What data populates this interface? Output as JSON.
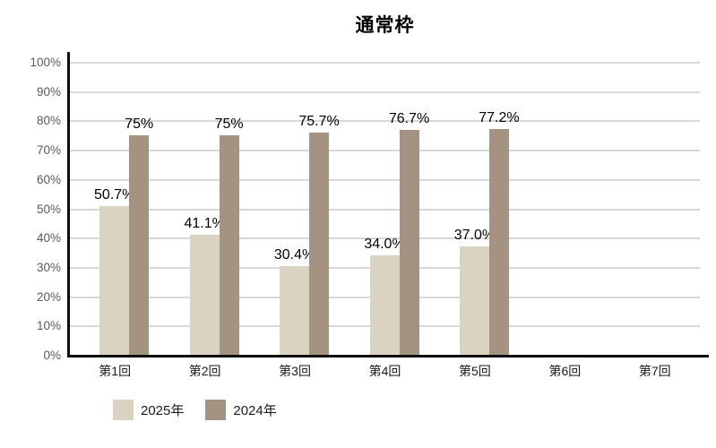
{
  "chart_data": {
    "type": "bar",
    "title": "通常枠",
    "categories": [
      "第1回",
      "第2回",
      "第3回",
      "第4回",
      "第5回",
      "第6回",
      "第7回"
    ],
    "series": [
      {
        "name": "2025年",
        "color": "#dad3c1",
        "values": [
          50.7,
          41.1,
          30.4,
          34.0,
          37.0,
          null,
          null
        ],
        "data_labels": [
          "50.7%",
          "41.1%",
          "30.4%",
          "34.0%",
          "37.0%",
          "",
          ""
        ]
      },
      {
        "name": "2024年",
        "color": "#a39380",
        "values": [
          75,
          75,
          75.7,
          76.7,
          77.2,
          null,
          null
        ],
        "data_labels": [
          "75%",
          "75%",
          "75.7%",
          "76.7%",
          "77.2%",
          "",
          ""
        ]
      }
    ],
    "y_axis": {
      "min": 0,
      "max": 100,
      "tick_step": 10,
      "tick_labels": [
        "0%",
        "10%",
        "20%",
        "30%",
        "40%",
        "50%",
        "60%",
        "70%",
        "80%",
        "90%",
        "100%"
      ]
    },
    "grid": true,
    "legend_position": "bottom-left",
    "background_color": "#ffffff",
    "gridline_color": "#d8d8d8",
    "axis_line_color": "#0d0d0d"
  }
}
